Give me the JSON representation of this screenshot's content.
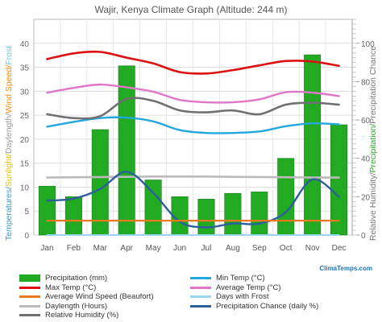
{
  "chart_data": {
    "type": "bar",
    "title": "Wajir, Kenya Climate Graph (Altitude: 244 m)",
    "categories": [
      "Jan",
      "Feb",
      "Mar",
      "Apr",
      "May",
      "Jun",
      "Jul",
      "Aug",
      "Sep",
      "Oct",
      "Nov",
      "Dec"
    ],
    "left_axis": {
      "label_parts": [
        {
          "text": "Temperatures/",
          "color": "#3399cc"
        },
        {
          "text": "Sunlight/",
          "color": "#e6c300"
        },
        {
          "text": "Daylength/",
          "color": "#999999"
        },
        {
          "text": "Wind Speed/",
          "color": "#ff8800"
        },
        {
          "text": "Frost",
          "color": "#66ccee"
        }
      ],
      "ylim": [
        0,
        45
      ],
      "ticks": [
        0,
        5,
        10,
        15,
        20,
        25,
        30,
        35,
        40
      ]
    },
    "right_axis_outer": {
      "label_parts": [
        {
          "text": "Relative Humidity/",
          "color": "#777777"
        },
        {
          "text": "Precipitation/",
          "color": "#22aa22"
        },
        {
          "text": "Precipitation Chance",
          "color": "#777777"
        }
      ],
      "ylim": [
        0,
        112.5
      ],
      "ticks": [
        0,
        20,
        40,
        60,
        80,
        100
      ]
    },
    "right_axis_inner": {
      "ticks_count": 45
    },
    "series": [
      {
        "name": "Precipitation (mm)",
        "kind": "bar",
        "axis": "left",
        "color": "#22aa22",
        "values": [
          10.2,
          8.0,
          22.0,
          35.3,
          11.5,
          8.0,
          7.5,
          8.7,
          9.0,
          16.0,
          37.6,
          23.0
        ]
      },
      {
        "name": "Max Temp (°C)",
        "kind": "line",
        "axis": "left",
        "color": "#dd1111",
        "values": [
          36.7,
          37.9,
          38.2,
          37.0,
          35.8,
          34.0,
          33.7,
          34.4,
          35.4,
          36.3,
          36.2,
          35.3
        ]
      },
      {
        "name": "Average Temp (°C)",
        "kind": "line",
        "axis": "left",
        "color": "#e176c8",
        "values": [
          29.7,
          30.7,
          31.4,
          30.8,
          29.9,
          28.2,
          27.7,
          27.7,
          28.3,
          29.8,
          29.7,
          29.0
        ]
      },
      {
        "name": "Min Temp (°C)",
        "kind": "line",
        "axis": "left",
        "color": "#22a8dd",
        "values": [
          22.6,
          23.6,
          24.4,
          24.5,
          23.7,
          21.9,
          21.3,
          21.3,
          21.6,
          22.7,
          23.3,
          23.1
        ]
      },
      {
        "name": "Relative Humidity (%)",
        "kind": "line",
        "axis": "right",
        "color": "#707070",
        "values": [
          63,
          61,
          62,
          71,
          70,
          65,
          64,
          65,
          63,
          68,
          69,
          68
        ]
      },
      {
        "name": "Daylength (Hours)",
        "kind": "line",
        "axis": "left",
        "color": "#bbbbbb",
        "values": [
          12.0,
          12.05,
          12.1,
          12.15,
          12.2,
          12.2,
          12.2,
          12.15,
          12.1,
          12.05,
          12.0,
          12.0
        ]
      },
      {
        "name": "Precipitation Chance (daily %)",
        "kind": "line",
        "axis": "right",
        "color": "#2d5f9a",
        "values": [
          18,
          19,
          24,
          33,
          22,
          7,
          4,
          6,
          6,
          12,
          29,
          20
        ]
      },
      {
        "name": "Average Wind Speed (Beaufort)",
        "kind": "line",
        "axis": "left",
        "color": "#ee7722",
        "values": [
          3,
          3,
          3,
          3,
          3,
          3,
          3,
          3,
          3,
          3,
          3,
          3
        ]
      },
      {
        "name": "Days with Frost",
        "kind": "line",
        "axis": "left",
        "color": "#99d6f0",
        "values": [
          0,
          0,
          0,
          0,
          0,
          0,
          0,
          0,
          0,
          0,
          0,
          0
        ]
      }
    ],
    "legend": {
      "placement": "bottom",
      "items": [
        {
          "label": "Precipitation (mm)",
          "color": "#22aa22",
          "style": "bar"
        },
        {
          "label": "Min Temp (°C)",
          "color": "#22a8dd",
          "style": "line"
        },
        {
          "label": "Max Temp (°C)",
          "color": "#dd1111",
          "style": "line"
        },
        {
          "label": "Average Temp (°C)",
          "color": "#e176c8",
          "style": "line"
        },
        {
          "label": "Average Wind Speed (Beaufort)",
          "color": "#ee7722",
          "style": "line"
        },
        {
          "label": "Days with Frost",
          "color": "#99d6f0",
          "style": "line"
        },
        {
          "label": "Daylength (Hours)",
          "color": "#bbbbbb",
          "style": "line"
        },
        {
          "label": "Precipitation Chance (daily %)",
          "color": "#2d5f9a",
          "style": "line"
        },
        {
          "label": "Relative Humidity (%)",
          "color": "#707070",
          "style": "line"
        }
      ]
    },
    "grid": true
  },
  "brand": {
    "text": "ClimaTemps.com"
  }
}
